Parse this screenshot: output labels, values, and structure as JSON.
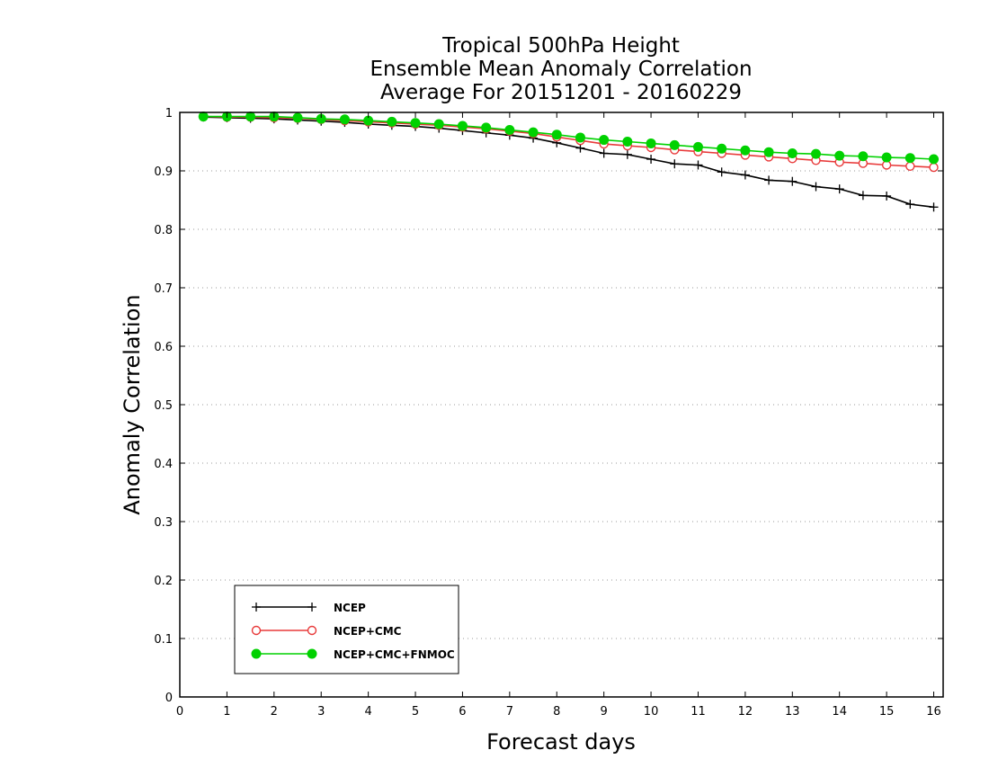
{
  "chart_data": {
    "type": "line",
    "title_lines": [
      "Tropical 500hPa Height",
      "Ensemble Mean Anomaly Correlation",
      "Average For 20151201 - 20160229"
    ],
    "xlabel": "Forecast days",
    "ylabel": "Anomaly Correlation",
    "xlim": [
      0,
      16.2
    ],
    "ylim": [
      0,
      1
    ],
    "x_ticks": [
      0,
      1,
      2,
      3,
      4,
      5,
      6,
      7,
      8,
      9,
      10,
      11,
      12,
      13,
      14,
      15,
      16
    ],
    "y_ticks": [
      0,
      0.1,
      0.2,
      0.3,
      0.4,
      0.5,
      0.6,
      0.7,
      0.8,
      0.9,
      1
    ],
    "y_tick_labels": [
      "0",
      "0.1",
      "0.2",
      "0.3",
      "0.4",
      "0.5",
      "0.6",
      "0.7",
      "0.8",
      "0.9",
      "1"
    ],
    "grid": "horizontal dotted",
    "legend_position": "bottom-left",
    "x": [
      0.5,
      1,
      1.5,
      2,
      2.5,
      3,
      3.5,
      4,
      4.5,
      5,
      5.5,
      6,
      6.5,
      7,
      7.5,
      8,
      8.5,
      9,
      9.5,
      10,
      10.5,
      11,
      11.5,
      12,
      12.5,
      13,
      13.5,
      14,
      14.5,
      15,
      15.5,
      16
    ],
    "series": [
      {
        "name": "NCEP",
        "color": "#000000",
        "marker": "plus",
        "values": [
          0.992,
          0.991,
          0.99,
          0.989,
          0.987,
          0.985,
          0.983,
          0.98,
          0.978,
          0.976,
          0.973,
          0.969,
          0.965,
          0.961,
          0.956,
          0.948,
          0.939,
          0.93,
          0.928,
          0.92,
          0.912,
          0.91,
          0.898,
          0.893,
          0.884,
          0.882,
          0.873,
          0.869,
          0.858,
          0.857,
          0.843,
          0.838
        ]
      },
      {
        "name": "NCEP+CMC",
        "color": "#e83a3a",
        "marker": "open-circle",
        "values": [
          0.993,
          0.992,
          0.992,
          0.991,
          0.99,
          0.988,
          0.986,
          0.984,
          0.982,
          0.98,
          0.978,
          0.975,
          0.972,
          0.968,
          0.964,
          0.958,
          0.952,
          0.946,
          0.943,
          0.94,
          0.936,
          0.933,
          0.93,
          0.927,
          0.924,
          0.921,
          0.918,
          0.915,
          0.913,
          0.91,
          0.908,
          0.906
        ]
      },
      {
        "name": "NCEP+CMC+FNMOC",
        "color": "#00d100",
        "marker": "filled-circle",
        "values": [
          0.993,
          0.993,
          0.993,
          0.993,
          0.991,
          0.989,
          0.988,
          0.986,
          0.984,
          0.982,
          0.98,
          0.977,
          0.974,
          0.97,
          0.966,
          0.962,
          0.957,
          0.953,
          0.95,
          0.947,
          0.944,
          0.941,
          0.938,
          0.935,
          0.932,
          0.93,
          0.929,
          0.926,
          0.925,
          0.923,
          0.922,
          0.92
        ]
      }
    ]
  }
}
